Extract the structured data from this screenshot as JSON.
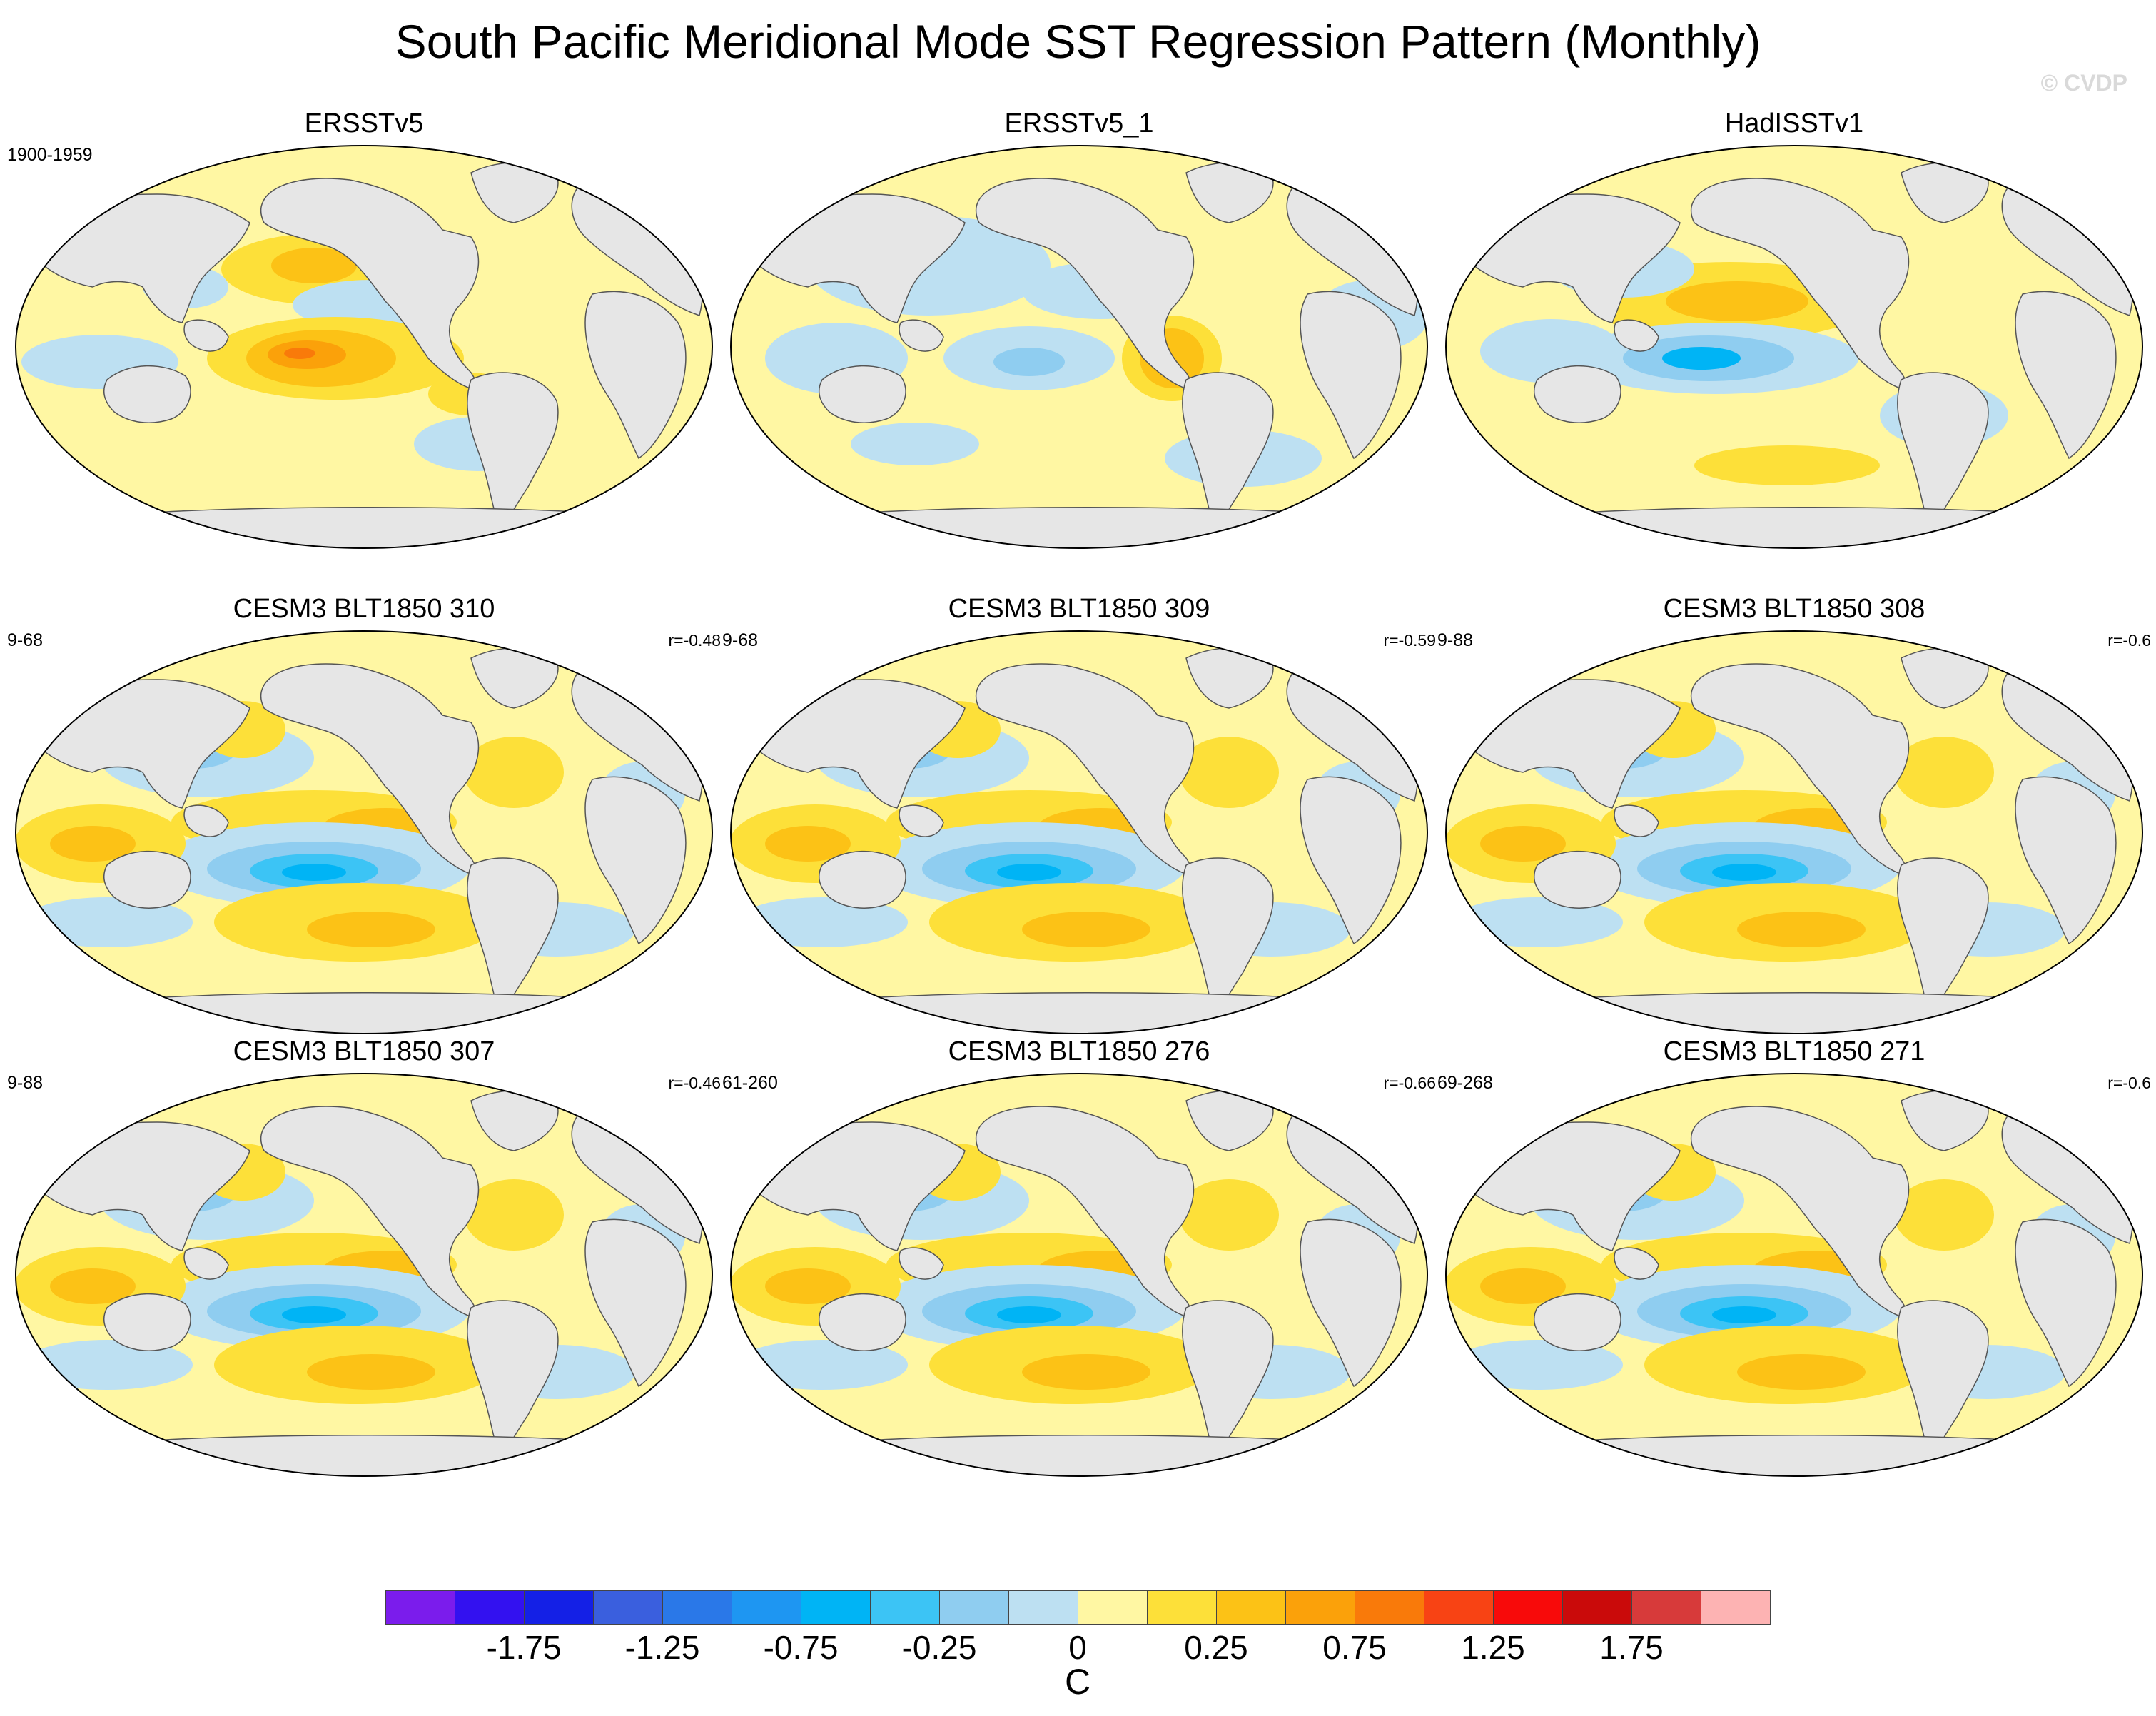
{
  "title": "South Pacific Meridional Mode SST Regression Pattern (Monthly)",
  "watermark": "© CVDP",
  "panels": [
    {
      "title": "ERSSTv5",
      "period": "1900-1959",
      "r": "",
      "pattern": "obs1"
    },
    {
      "title": "ERSSTv5_1",
      "period": "",
      "r": "",
      "pattern": "obs2"
    },
    {
      "title": "HadISSTv1",
      "period": "",
      "r": "",
      "pattern": "obs3"
    },
    {
      "title": "CESM3 BLT1850 310",
      "period": "9-68",
      "r": "r=-0.48",
      "pattern": "model"
    },
    {
      "title": "CESM3 BLT1850 309",
      "period": "9-68",
      "r": "r=-0.59",
      "pattern": "model"
    },
    {
      "title": "CESM3 BLT1850 308",
      "period": "9-88",
      "r": "r=-0.6",
      "pattern": "model"
    },
    {
      "title": "CESM3 BLT1850 307",
      "period": "9-88",
      "r": "r=-0.46",
      "pattern": "model"
    },
    {
      "title": "CESM3 BLT1850 276",
      "period": "61-260",
      "r": "r=-0.66",
      "pattern": "model"
    },
    {
      "title": "CESM3 BLT1850 271",
      "period": "69-268",
      "r": "r=-0.6",
      "pattern": "model"
    }
  ],
  "colorbar": {
    "colors": [
      "#7b1cec",
      "#3311f0",
      "#1420e6",
      "#3a5fde",
      "#2a78e8",
      "#1e96f2",
      "#00b4f5",
      "#3cc4f5",
      "#8fcdf0",
      "#bde0f2",
      "#fff7a3",
      "#fde039",
      "#fcc216",
      "#fba10a",
      "#f97a0a",
      "#f84314",
      "#f80a0a",
      "#ca0a0a",
      "#d73a3a",
      "#fdb3b3"
    ],
    "labels": [
      "-1.75",
      "-1.25",
      "-0.75",
      "-0.25",
      "0",
      "0.25",
      "0.75",
      "1.25",
      "1.75"
    ],
    "units": "C"
  }
}
